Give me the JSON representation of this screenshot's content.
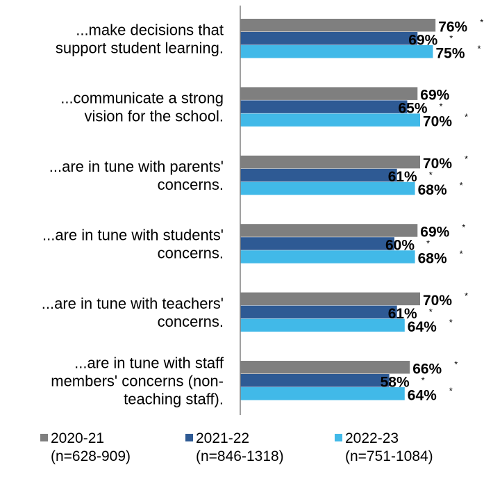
{
  "colors": {
    "2020-21": "#7f7f7f",
    "2021-22": "#2e5a94",
    "2022-23": "#41b9e8",
    "axis": "#808080"
  },
  "chart_data": {
    "type": "bar",
    "orientation": "horizontal",
    "categories": [
      [
        "...make decisions that",
        "support student learning."
      ],
      [
        "...communicate a strong",
        "vision for the school."
      ],
      [
        "...are in tune with parents'",
        "concerns."
      ],
      [
        "...are in tune with students'",
        "concerns."
      ],
      [
        "...are in tune with teachers'",
        "concerns."
      ],
      [
        "...are in tune with staff",
        "members' concerns (non-",
        "teaching staff)."
      ]
    ],
    "series": [
      {
        "name": "2020-21",
        "sample": "(n=628-909)",
        "color": "#7f7f7f",
        "values": [
          76,
          69,
          70,
          69,
          70,
          66
        ],
        "labels": [
          "76%",
          "69%",
          "70%",
          "69%",
          "70%",
          "66%"
        ],
        "significant": [
          true,
          false,
          true,
          true,
          true,
          true
        ]
      },
      {
        "name": "2021-22",
        "sample": "(n=846-1318)",
        "color": "#2e5a94",
        "values": [
          69,
          65,
          61,
          60,
          61,
          58
        ],
        "labels": [
          "69%",
          "65%",
          "61%",
          "60%",
          "61%",
          "58%"
        ],
        "significant": [
          true,
          true,
          true,
          true,
          true,
          true
        ]
      },
      {
        "name": "2022-23",
        "sample": "(n=751-1084)",
        "color": "#41b9e8",
        "values": [
          75,
          70,
          68,
          68,
          64,
          64
        ],
        "labels": [
          "75%",
          "70%",
          "68%",
          "68%",
          "64%",
          "64%"
        ],
        "significant": [
          true,
          true,
          true,
          true,
          true,
          true
        ]
      }
    ],
    "significance_marker": "*",
    "xlim": [
      0,
      100
    ],
    "legend_position": "bottom"
  }
}
